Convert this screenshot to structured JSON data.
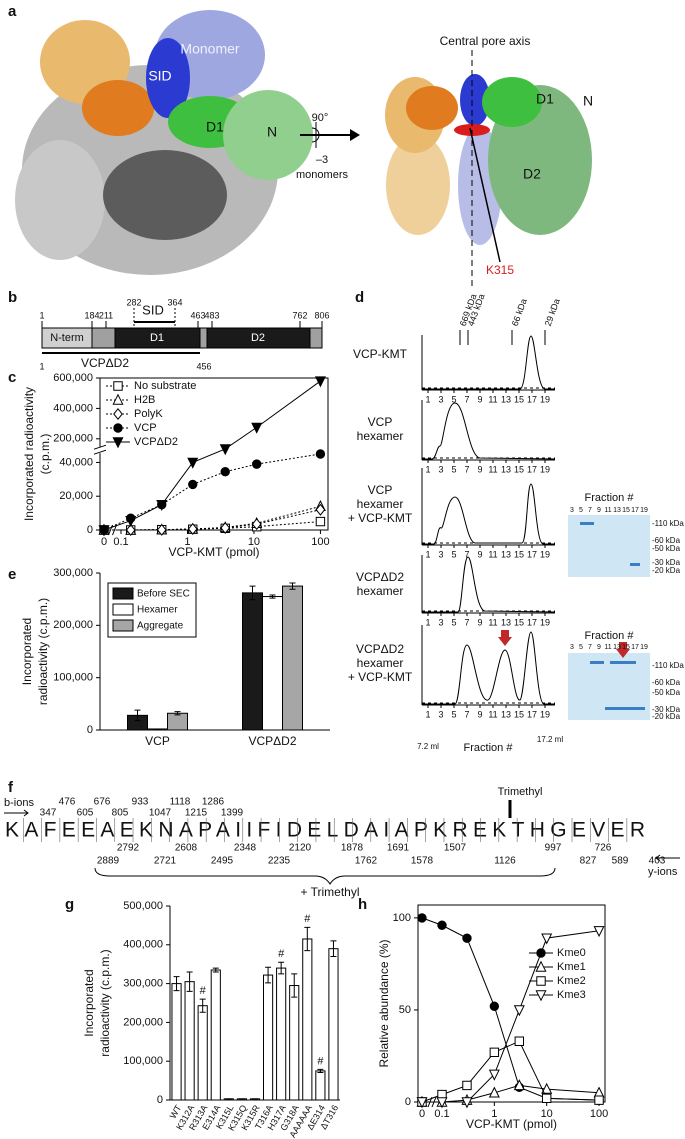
{
  "panels": {
    "a": {
      "label": "a",
      "monomer": "Monomer",
      "sid": "SID",
      "d1": "D1",
      "n": "N",
      "rotation": "90°",
      "minus": "–3",
      "monomers": "monomers",
      "axis": "Central pore axis",
      "d1_side": "D1",
      "n_side": "N",
      "d2_side": "D2",
      "residue": "K315"
    },
    "b": {
      "label": "b",
      "positions": [
        1,
        184,
        211,
        282,
        364,
        463,
        483,
        762,
        806
      ],
      "domains": [
        "N-term",
        "SID",
        "D1",
        "D2"
      ],
      "construct": "VCPΔD2",
      "construct_range": [
        1,
        456
      ]
    },
    "d": {
      "label": "d",
      "standards": [
        "669 kDa",
        "443 kDa",
        "66 kDa",
        "29 kDa"
      ],
      "rows": [
        [
          "VCP-KMT"
        ],
        [
          "VCP",
          "hexamer"
        ],
        [
          "VCP",
          "hexamer",
          "+ VCP-KMT"
        ],
        [
          "VCPΔD2",
          "hexamer"
        ],
        [
          "VCPΔD2",
          "hexamer",
          "+ VCP-KMT"
        ]
      ],
      "fractions": [
        1,
        3,
        5,
        7,
        9,
        11,
        13,
        15,
        17,
        19
      ],
      "xlabel": "Fraction #",
      "volumes": [
        "7.2 ml",
        "17.2 ml"
      ],
      "gel_title": "Fraction #",
      "gel_fractions": [
        3,
        5,
        7,
        9,
        11,
        13,
        15,
        17,
        19
      ],
      "gel_markers": [
        "-110 kDa",
        "-60 kDa",
        "-50 kDa",
        "-30 kDa",
        "-20 kDa"
      ]
    },
    "f": {
      "label": "f",
      "b_label": "b-ions",
      "y_label": "y-ions",
      "sequence": "KAFEEAEKNAPAIIFIDELDAIAPKREKTHGEVER",
      "b_ions": [
        347,
        476,
        605,
        676,
        805,
        933,
        1047,
        1118,
        1215,
        1286,
        1399
      ],
      "y_ions": [
        2889,
        2792,
        2721,
        2608,
        2495,
        2348,
        2235,
        2120,
        1878,
        1762,
        1691,
        1578,
        1507,
        1126,
        997,
        827,
        726,
        589,
        403
      ],
      "modification": "Trimethyl",
      "shift": "+ Trimethyl"
    }
  },
  "chart_data": [
    {
      "type": "line",
      "label": "c",
      "ylabel": [
        "Incorporated radioactivity",
        "(c.p.m.)"
      ],
      "xlabel": "VCP-KMT (pmol)",
      "log_x": true,
      "x": [
        0,
        0.14,
        0.41,
        1.2,
        3.7,
        11,
        100
      ],
      "xlim": [
        0,
        130
      ],
      "xticks": [
        0,
        0.1,
        1,
        10,
        100
      ],
      "ylim": [
        0,
        600000
      ],
      "ybreak": [
        45000,
        150000
      ],
      "yticks": [
        0,
        {
          "value": 20000,
          "label": "20,000"
        },
        {
          "value": 40000,
          "label": "40,000"
        },
        {
          "value": 200000,
          "label": "200,000"
        },
        {
          "value": 400000,
          "label": "400,000"
        },
        {
          "value": 600000,
          "label": "600,000"
        }
      ],
      "legend": "top-left",
      "series": [
        {
          "name": "No substrate",
          "color": "#000000",
          "marker": "square",
          "filled": false,
          "dash": "2,2",
          "values": [
            0,
            0,
            200,
            500,
            1000,
            2000,
            5000
          ]
        },
        {
          "name": "H2B",
          "color": "#000000",
          "marker": "triangle-up",
          "filled": false,
          "dash": "2,2",
          "values": [
            0,
            0,
            200,
            600,
            1500,
            4000,
            14000
          ]
        },
        {
          "name": "PolyK",
          "color": "#000000",
          "marker": "diamond",
          "filled": false,
          "dash": "2,2",
          "values": [
            0,
            0,
            100,
            600,
            1200,
            3500,
            12000
          ]
        },
        {
          "name": "VCP",
          "color": "#000000",
          "marker": "circle",
          "filled": true,
          "dash": "2,2",
          "values": [
            0,
            7000,
            15000,
            27000,
            34500,
            39000,
            45000
          ]
        },
        {
          "name": "VCPΔD2",
          "color": "#000000",
          "marker": "triangle-down",
          "filled": true,
          "dash": "",
          "values": [
            0,
            5500,
            15000,
            40000,
            115000,
            275000,
            580000
          ]
        }
      ]
    },
    {
      "type": "bar",
      "label": "e",
      "ylabel": [
        "Incorporated",
        "radioactivity (c.p.m.)"
      ],
      "categories": [
        "VCP",
        "VCPΔD2"
      ],
      "ylim": [
        0,
        300000
      ],
      "yticks": [
        0,
        {
          "value": 100000,
          "label": "100,000"
        },
        {
          "value": 200000,
          "label": "200,000"
        },
        {
          "value": 300000,
          "label": "300,000"
        }
      ],
      "legend": "top-left",
      "series": [
        {
          "name": "Before SEC",
          "color": "#1a1a1a",
          "values": [
            28000,
            262000
          ],
          "errors": [
            10000,
            13000
          ]
        },
        {
          "name": "Hexamer",
          "color": "#ffffff",
          "values": [
            2000,
            255000
          ],
          "errors": [
            0,
            3000
          ]
        },
        {
          "name": "Aggregate",
          "color": "#a6a6a6",
          "values": [
            32000,
            275000
          ],
          "errors": [
            3000,
            6000
          ]
        }
      ]
    },
    {
      "type": "bar",
      "label": "g",
      "ylabel": [
        "Incorporated",
        "radioactivity (c.p.m.)"
      ],
      "categories": [
        "WT",
        "K312A",
        "R313A",
        "E314A",
        "K315L",
        "K315Q",
        "K315R",
        "T316A",
        "H317A",
        "G318A",
        "AAAAAA",
        "ΔE314",
        "ΔT316"
      ],
      "values": [
        300000,
        305000,
        243000,
        335000,
        3000,
        3000,
        3000,
        322000,
        340000,
        295000,
        415000,
        75000,
        390000
      ],
      "errors": [
        18000,
        25000,
        17000,
        5000,
        0,
        0,
        0,
        20000,
        15000,
        30000,
        30000,
        4000,
        20000
      ],
      "notes": [
        null,
        null,
        "#",
        null,
        null,
        null,
        null,
        null,
        "#",
        null,
        "#",
        "#",
        null
      ],
      "color": "#ffffff",
      "ylim": [
        0,
        500000
      ],
      "yticks": [
        0,
        {
          "value": 100000,
          "label": "100,000"
        },
        {
          "value": 200000,
          "label": "200,000"
        },
        {
          "value": 300000,
          "label": "300,000"
        },
        {
          "value": 400000,
          "label": "400,000"
        },
        {
          "value": 500000,
          "label": "500,000"
        }
      ]
    },
    {
      "type": "line",
      "label": "h",
      "ylabel": [
        "Relative abundance (%)"
      ],
      "xlabel": "VCP-KMT (pmol)",
      "log_x": true,
      "x": [
        0,
        0.1,
        0.3,
        1,
        3,
        10,
        100
      ],
      "xlim": [
        0,
        130
      ],
      "xticks": [
        0,
        0.1,
        1,
        10,
        100
      ],
      "ylim": [
        0,
        107
      ],
      "yticks": [
        0,
        50,
        100
      ],
      "legend": "right",
      "series": [
        {
          "name": "Kme0",
          "color": "#000000",
          "marker": "circle",
          "filled": true,
          "dash": "",
          "values": [
            100,
            96,
            89,
            52,
            8,
            2,
            1
          ]
        },
        {
          "name": "Kme1",
          "color": "#000000",
          "marker": "triangle-up",
          "filled": false,
          "dash": "",
          "values": [
            0,
            0,
            1,
            5,
            9,
            7,
            5
          ]
        },
        {
          "name": "Kme2",
          "color": "#000000",
          "marker": "square",
          "filled": false,
          "dash": "",
          "values": [
            0,
            4,
            9,
            27,
            33,
            2,
            1
          ]
        },
        {
          "name": "Kme3",
          "color": "#000000",
          "marker": "triangle-down",
          "filled": false,
          "dash": "",
          "values": [
            0,
            0,
            0,
            15,
            50,
            89,
            93
          ]
        }
      ]
    }
  ]
}
